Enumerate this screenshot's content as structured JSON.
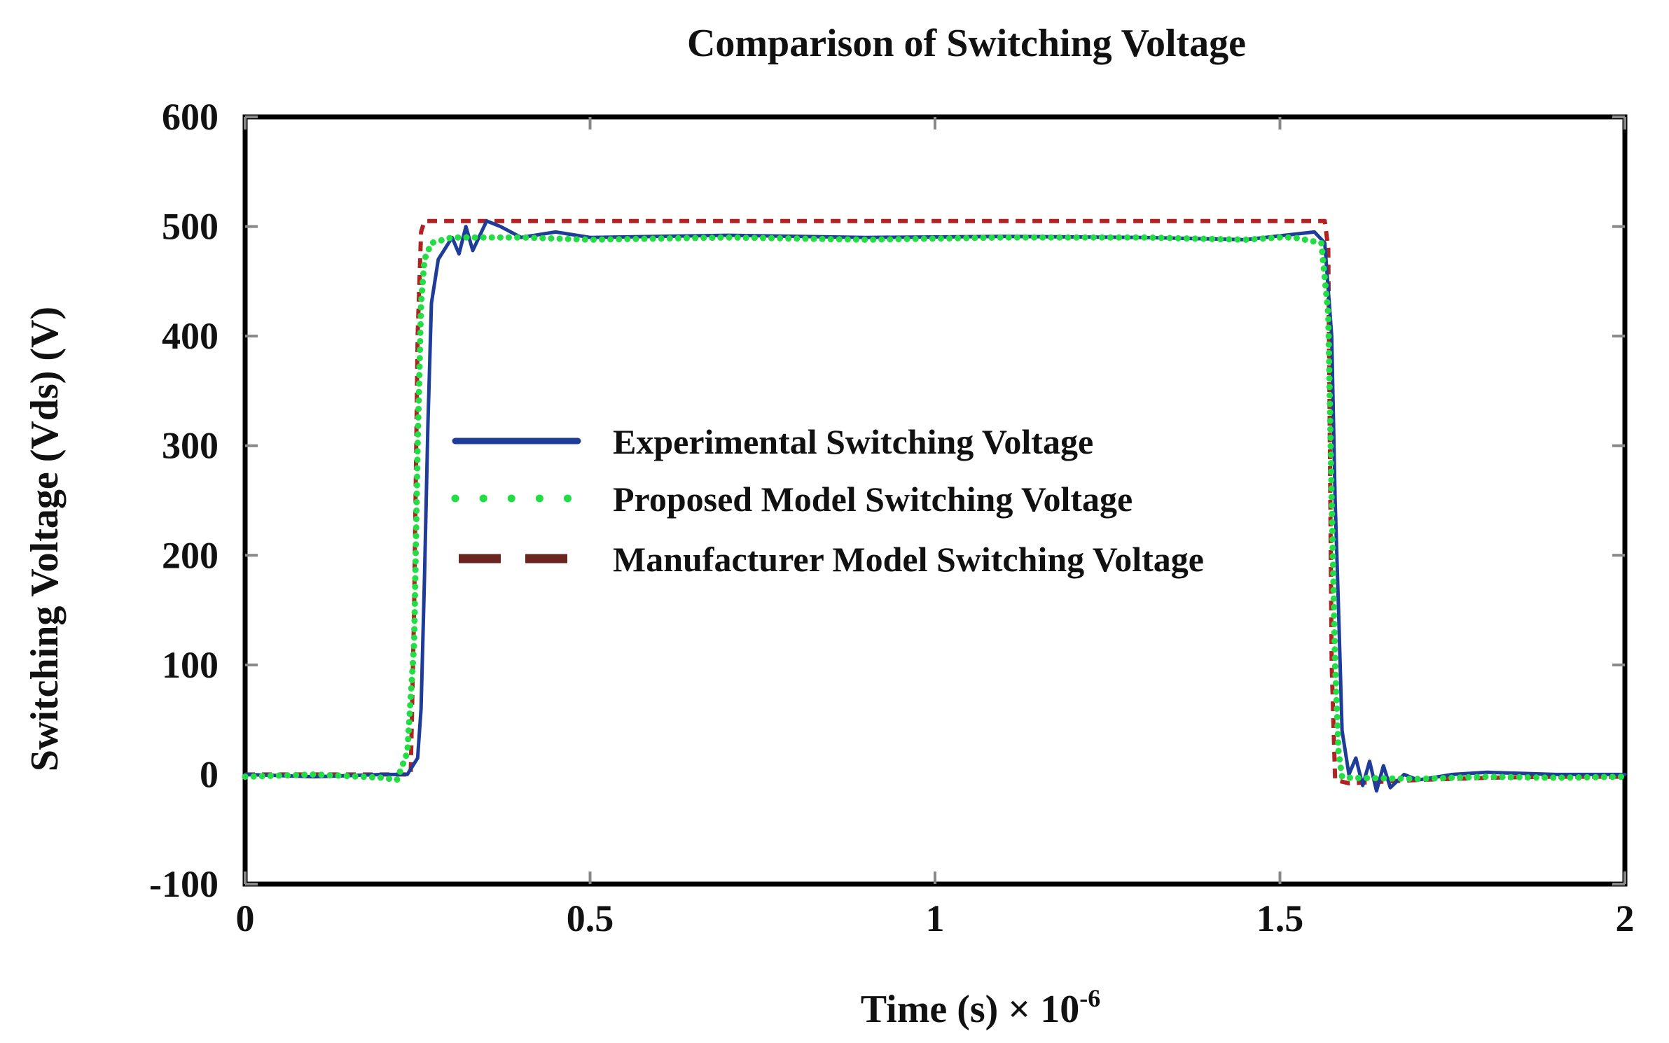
{
  "chart_data": {
    "type": "line",
    "title": "Comparison of Switching Voltage",
    "xlabel": "Time (s) × 10",
    "xlabel_exponent": "-6",
    "ylabel": "Switching Voltage (Vds) (V)",
    "xlim": [
      0,
      2
    ],
    "ylim": [
      -100,
      600
    ],
    "x_ticks": [
      "0",
      "0.5",
      "1",
      "1.5",
      "2"
    ],
    "y_ticks": [
      "600",
      "500",
      "400",
      "300",
      "200",
      "100",
      "0",
      "-100"
    ],
    "grid": false,
    "legend_position": "center-left",
    "series": [
      {
        "name": "Experimental Switching Voltage",
        "color": "#1f3c99",
        "style": "solid",
        "x": [
          0,
          0.1,
          0.2,
          0.235,
          0.25,
          0.255,
          0.26,
          0.265,
          0.27,
          0.28,
          0.3,
          0.31,
          0.32,
          0.33,
          0.35,
          0.37,
          0.4,
          0.45,
          0.5,
          0.7,
          0.9,
          1.1,
          1.3,
          1.45,
          1.55,
          1.565,
          1.575,
          1.58,
          1.585,
          1.59,
          1.6,
          1.61,
          1.62,
          1.63,
          1.64,
          1.65,
          1.66,
          1.68,
          1.7,
          1.75,
          1.8,
          1.9,
          2.0
        ],
        "y": [
          0,
          -2,
          0,
          0,
          15,
          60,
          180,
          320,
          430,
          470,
          490,
          475,
          500,
          478,
          505,
          500,
          490,
          495,
          490,
          492,
          490,
          491,
          490,
          488,
          495,
          485,
          400,
          250,
          150,
          40,
          0,
          15,
          -10,
          12,
          -15,
          8,
          -12,
          0,
          -5,
          0,
          2,
          0,
          0
        ]
      },
      {
        "name": "Proposed Model Switching Voltage",
        "color": "#22dd44",
        "style": "dotted",
        "x": [
          0,
          0.1,
          0.2,
          0.22,
          0.235,
          0.245,
          0.25,
          0.255,
          0.26,
          0.27,
          0.3,
          0.4,
          0.5,
          0.7,
          0.9,
          1.1,
          1.3,
          1.45,
          1.5,
          1.52,
          1.56,
          1.57,
          1.575,
          1.58,
          1.585,
          1.59,
          1.6,
          1.7,
          1.8,
          1.9,
          2.0
        ],
        "y": [
          -2,
          0,
          -3,
          -5,
          20,
          120,
          300,
          430,
          470,
          485,
          490,
          490,
          488,
          490,
          488,
          490,
          490,
          488,
          490,
          490,
          485,
          420,
          250,
          100,
          20,
          -2,
          -3,
          -4,
          -2,
          -3,
          -2
        ]
      },
      {
        "name": "Manufacturer Model Switching Voltage",
        "color": "#b22222",
        "style": "dashed",
        "x": [
          0,
          0.24,
          0.245,
          0.25,
          0.255,
          0.26,
          0.5,
          1.0,
          1.5,
          1.565,
          1.57,
          1.575,
          1.58,
          1.6,
          1.7,
          1.8,
          1.9,
          2.0
        ],
        "y": [
          0,
          0,
          150,
          400,
          495,
          505,
          505,
          505,
          505,
          505,
          480,
          100,
          -5,
          -8,
          -5,
          -3,
          -2,
          -2
        ]
      }
    ]
  }
}
